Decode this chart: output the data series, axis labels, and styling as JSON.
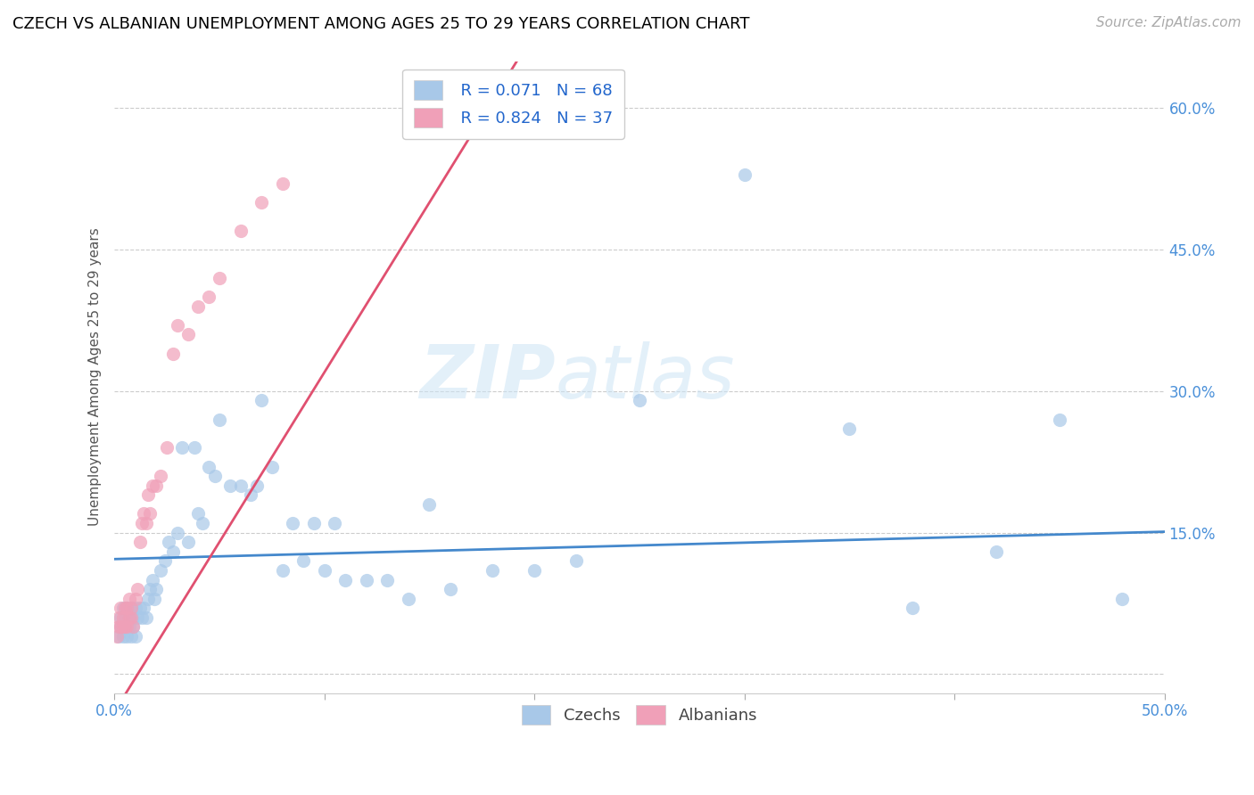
{
  "title": "CZECH VS ALBANIAN UNEMPLOYMENT AMONG AGES 25 TO 29 YEARS CORRELATION CHART",
  "source": "Source: ZipAtlas.com",
  "ylabel": "Unemployment Among Ages 25 to 29 years",
  "xlim": [
    0.0,
    0.5
  ],
  "ylim": [
    -0.02,
    0.65
  ],
  "xticks": [
    0.0,
    0.1,
    0.2,
    0.3,
    0.4,
    0.5
  ],
  "xticklabels_ends": [
    "0.0%",
    "50.0%"
  ],
  "yticks": [
    0.0,
    0.15,
    0.3,
    0.45,
    0.6
  ],
  "yticklabels": [
    "",
    "15.0%",
    "30.0%",
    "45.0%",
    "60.0%"
  ],
  "czech_color": "#a8c8e8",
  "albanian_color": "#f0a0b8",
  "czech_line_color": "#4488cc",
  "albanian_line_color": "#e05070",
  "legend_r_czech": "R = 0.071",
  "legend_n_czech": "N = 68",
  "legend_r_albanian": "R = 0.824",
  "legend_n_albanian": "N = 37",
  "watermark_zip": "ZIP",
  "watermark_atlas": "atlas",
  "czech_x": [
    0.002,
    0.003,
    0.003,
    0.004,
    0.004,
    0.005,
    0.005,
    0.006,
    0.006,
    0.007,
    0.007,
    0.008,
    0.008,
    0.009,
    0.009,
    0.01,
    0.01,
    0.011,
    0.012,
    0.013,
    0.014,
    0.015,
    0.016,
    0.017,
    0.018,
    0.019,
    0.02,
    0.022,
    0.024,
    0.026,
    0.028,
    0.03,
    0.032,
    0.035,
    0.038,
    0.04,
    0.042,
    0.045,
    0.048,
    0.05,
    0.055,
    0.06,
    0.065,
    0.068,
    0.07,
    0.075,
    0.08,
    0.085,
    0.09,
    0.095,
    0.1,
    0.105,
    0.11,
    0.12,
    0.13,
    0.14,
    0.15,
    0.16,
    0.18,
    0.2,
    0.22,
    0.25,
    0.3,
    0.35,
    0.38,
    0.42,
    0.45,
    0.48
  ],
  "czech_y": [
    0.04,
    0.05,
    0.06,
    0.04,
    0.07,
    0.05,
    0.06,
    0.04,
    0.07,
    0.05,
    0.06,
    0.04,
    0.07,
    0.05,
    0.06,
    0.04,
    0.07,
    0.06,
    0.07,
    0.06,
    0.07,
    0.06,
    0.08,
    0.09,
    0.1,
    0.08,
    0.09,
    0.11,
    0.12,
    0.14,
    0.13,
    0.15,
    0.24,
    0.14,
    0.24,
    0.17,
    0.16,
    0.22,
    0.21,
    0.27,
    0.2,
    0.2,
    0.19,
    0.2,
    0.29,
    0.22,
    0.11,
    0.16,
    0.12,
    0.16,
    0.11,
    0.16,
    0.1,
    0.1,
    0.1,
    0.08,
    0.18,
    0.09,
    0.11,
    0.11,
    0.12,
    0.29,
    0.53,
    0.26,
    0.07,
    0.13,
    0.27,
    0.08
  ],
  "albanian_x": [
    0.001,
    0.002,
    0.002,
    0.003,
    0.003,
    0.004,
    0.004,
    0.005,
    0.005,
    0.006,
    0.006,
    0.007,
    0.007,
    0.008,
    0.008,
    0.009,
    0.01,
    0.011,
    0.012,
    0.013,
    0.014,
    0.015,
    0.016,
    0.017,
    0.018,
    0.02,
    0.022,
    0.025,
    0.028,
    0.03,
    0.035,
    0.04,
    0.045,
    0.05,
    0.06,
    0.07,
    0.08
  ],
  "albanian_y": [
    0.04,
    0.05,
    0.06,
    0.05,
    0.07,
    0.05,
    0.06,
    0.05,
    0.07,
    0.05,
    0.07,
    0.06,
    0.08,
    0.06,
    0.07,
    0.05,
    0.08,
    0.09,
    0.14,
    0.16,
    0.17,
    0.16,
    0.19,
    0.17,
    0.2,
    0.2,
    0.21,
    0.24,
    0.34,
    0.37,
    0.36,
    0.39,
    0.4,
    0.42,
    0.47,
    0.5,
    0.52
  ],
  "background_color": "#ffffff",
  "grid_color": "#cccccc",
  "title_fontsize": 13,
  "axis_label_fontsize": 11,
  "tick_fontsize": 12,
  "legend_fontsize": 13,
  "source_fontsize": 11
}
